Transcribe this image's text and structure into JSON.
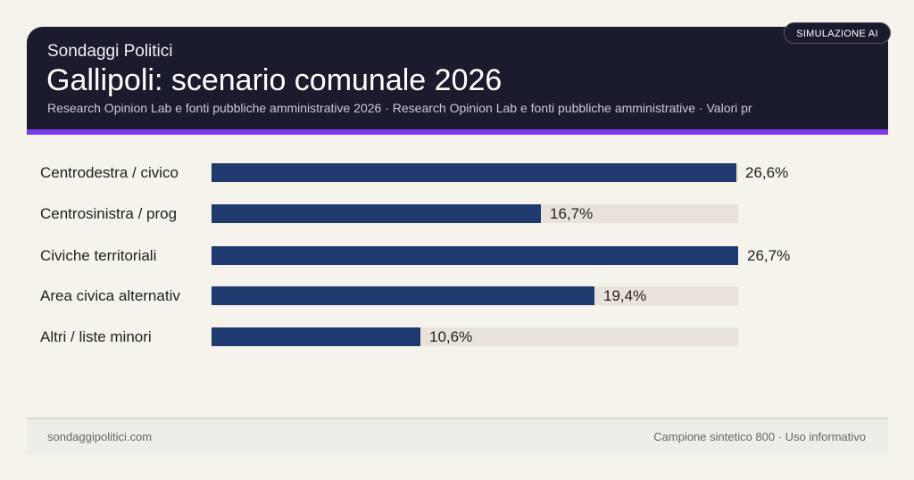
{
  "header": {
    "kicker": "Sondaggi Politici",
    "title": "Gallipoli: scenario comunale 2026",
    "subtitle": "Research Opinion Lab e fonti pubbliche amministrative 2026 · Research Opinion Lab e fonti pubbliche amministrative · Valori pr",
    "badge": "SIMULAZIONE AI"
  },
  "chart_data": {
    "type": "bar",
    "orientation": "horizontal",
    "categories": [
      "Centrodestra / civico",
      "Centrosinistra / prog",
      "Civiche territoriali",
      "Area civica alternativ",
      "Altri / liste minori"
    ],
    "values": [
      26.6,
      16.7,
      26.7,
      19.4,
      10.6
    ],
    "value_labels": [
      "26,6%",
      "16,7%",
      "26,7%",
      "19,4%",
      "10,6%"
    ],
    "xlim": [
      0,
      26.7
    ],
    "colors": {
      "bar": "#1e3a6e",
      "track": "#e8e2da"
    }
  },
  "footer": {
    "left": "sondaggipolitici.com",
    "right": "Campione sintetico 800 · Uso informativo"
  }
}
